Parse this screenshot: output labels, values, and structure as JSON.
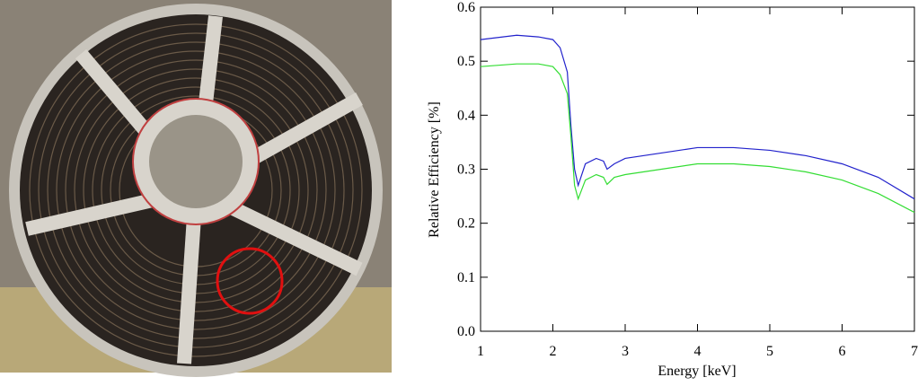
{
  "chart_data": {
    "type": "line",
    "x_label": "Energy [keV]",
    "y_label": "Relative Efficiency [%]",
    "x": [
      1,
      1.5,
      1.8,
      2.0,
      2.1,
      2.2,
      2.25,
      2.3,
      2.35,
      2.45,
      2.6,
      2.7,
      2.75,
      2.85,
      3,
      3.5,
      4,
      4.5,
      5,
      5.5,
      6,
      6.5,
      7
    ],
    "series": [
      {
        "color": "#2222cc",
        "values": [
          0.54,
          0.548,
          0.545,
          0.54,
          0.525,
          0.48,
          0.38,
          0.3,
          0.27,
          0.31,
          0.32,
          0.315,
          0.3,
          0.31,
          0.32,
          0.33,
          0.34,
          0.34,
          0.335,
          0.325,
          0.31,
          0.285,
          0.245
        ]
      },
      {
        "color": "#33dd33",
        "values": [
          0.49,
          0.495,
          0.495,
          0.49,
          0.475,
          0.44,
          0.36,
          0.27,
          0.245,
          0.28,
          0.29,
          0.285,
          0.272,
          0.285,
          0.29,
          0.3,
          0.31,
          0.31,
          0.305,
          0.295,
          0.28,
          0.255,
          0.22
        ]
      }
    ],
    "xlim": [
      1,
      7
    ],
    "xticks": [
      1,
      2,
      3,
      4,
      5,
      6,
      7
    ],
    "ylim": [
      0,
      0.6
    ],
    "yticks": [
      {
        "value": 0,
        "label": "0.0"
      },
      0.1,
      0.2,
      0.3,
      0.4,
      0.5,
      0.6
    ]
  }
}
